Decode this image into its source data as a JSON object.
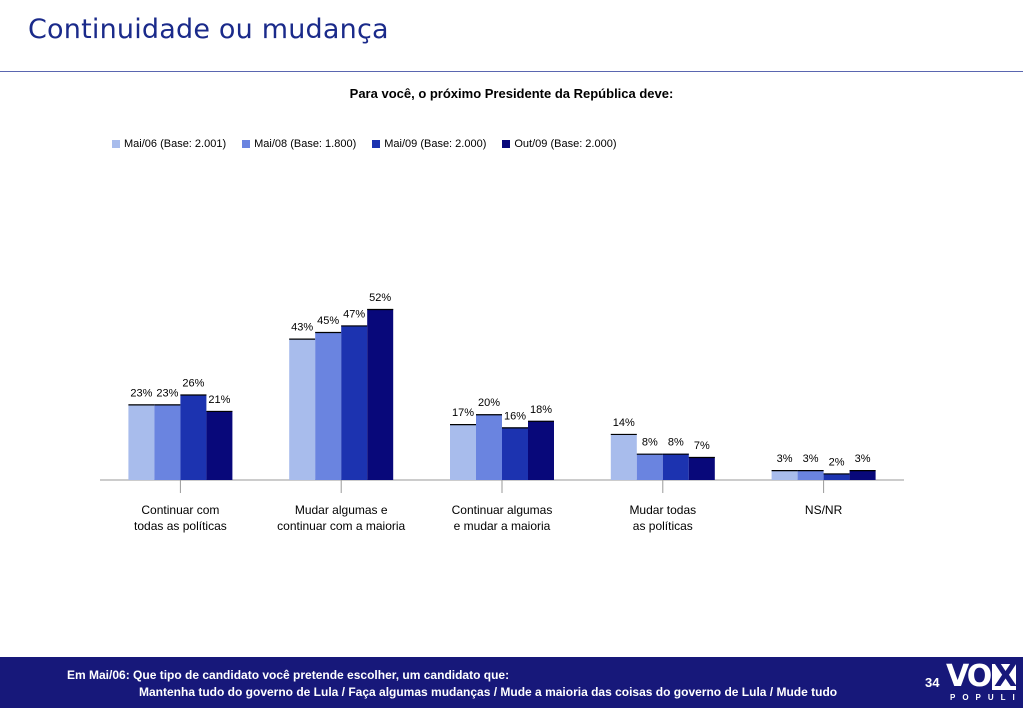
{
  "page": {
    "title": "Continuidade ou mudança",
    "page_number": "34"
  },
  "chart_data": {
    "type": "bar",
    "title": "Para você, o próximo Presidente da República deve:",
    "categories": [
      [
        "Continuar com",
        "todas as políticas"
      ],
      [
        "Mudar algumas e",
        "continuar com a maioria"
      ],
      [
        "Continuar algumas",
        "e mudar a maioria"
      ],
      [
        "Mudar todas",
        "as políticas"
      ],
      [
        "NS/NR"
      ]
    ],
    "series": [
      {
        "name": "Mai/06 (Base: 2.001)",
        "color": "#a8bcec",
        "values": [
          23,
          43,
          17,
          14,
          3
        ]
      },
      {
        "name": "Mai/08 (Base: 1.800)",
        "color": "#6a84e0",
        "values": [
          23,
          45,
          20,
          8,
          3
        ]
      },
      {
        "name": "Mai/09 (Base: 2.000)",
        "color": "#1c33b0",
        "values": [
          26,
          47,
          16,
          8,
          2
        ]
      },
      {
        "name": "Out/09 (Base: 2.000)",
        "color": "#08087a",
        "values": [
          21,
          52,
          18,
          7,
          3
        ]
      }
    ],
    "value_suffix": "%",
    "ylim": [
      0,
      52
    ],
    "grid": false,
    "legend_position": "top"
  },
  "footer": {
    "line1": "Em Mai/06: Que tipo de candidato você pretende escolher, um candidato que:",
    "line2": "Mantenha tudo do governo de Lula / Faça algumas mudanças / Mude a maioria das coisas do governo de Lula / Mude tudo"
  },
  "logo": {
    "word": "VO",
    "x_letter": "X",
    "sub": "POPULI"
  }
}
